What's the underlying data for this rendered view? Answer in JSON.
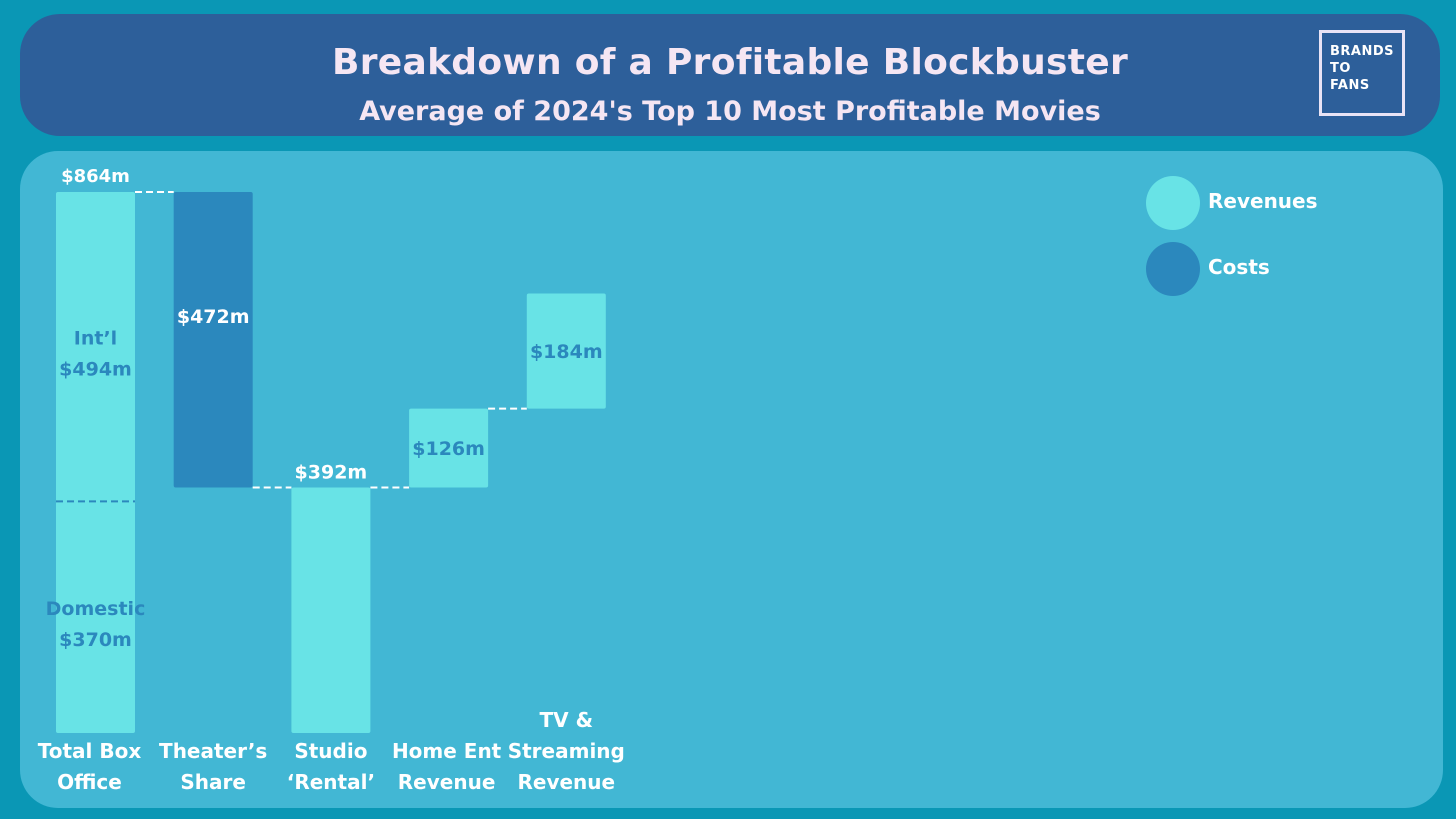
{
  "header": {
    "title": "Breakdown of a Profitable Blockbuster",
    "subtitle": "Average of 2024's Top 10 Most Profitable Movies",
    "logo_lines": [
      "BRANDS",
      "TO",
      "FANS"
    ]
  },
  "colors": {
    "revenue": "#68e3e6",
    "cost": "#2b88bd",
    "label_dark": "#2b88bd",
    "label_light": "#ffffff"
  },
  "legend": [
    {
      "label": "Revenues",
      "color": "#68e3e6"
    },
    {
      "label": "Costs",
      "color": "#2b88bd"
    }
  ],
  "chart_data": {
    "type": "bar",
    "subtype": "waterfall",
    "title": "Breakdown of a Profitable Blockbuster",
    "subtitle": "Average of 2024's Top 10 Most Profitable Movies",
    "units": "$m",
    "categories": [
      [
        "Total Box",
        "Office"
      ],
      [
        "Theater’s",
        "Share"
      ],
      [
        "Studio",
        "‘Rental’"
      ],
      [
        "Home Ent",
        "Revenue"
      ],
      [
        "TV &",
        "Streaming",
        "Revenue"
      ]
    ],
    "bars": [
      {
        "kind": "revenue",
        "start": 0,
        "end": 864,
        "total_label": "$864m",
        "segments": [
          {
            "name": "Domestic",
            "start": 0,
            "end": 370,
            "label": [
              "Domestic",
              "$370m"
            ]
          },
          {
            "name": "Int’l",
            "start": 370,
            "end": 864,
            "label": [
              "Int’l",
              "$494m"
            ]
          }
        ]
      },
      {
        "kind": "cost",
        "start": 392,
        "end": 864,
        "label": "$472m"
      },
      {
        "kind": "revenue",
        "start": 0,
        "end": 392,
        "label": "$392m"
      },
      {
        "kind": "revenue",
        "start": 392,
        "end": 518,
        "label": "$126m"
      },
      {
        "kind": "revenue",
        "start": 518,
        "end": 702,
        "label": "$184m"
      }
    ],
    "ylim": [
      0,
      864
    ],
    "legend": [
      "Revenues",
      "Costs"
    ],
    "legend_position": "top-right",
    "grid": false
  }
}
